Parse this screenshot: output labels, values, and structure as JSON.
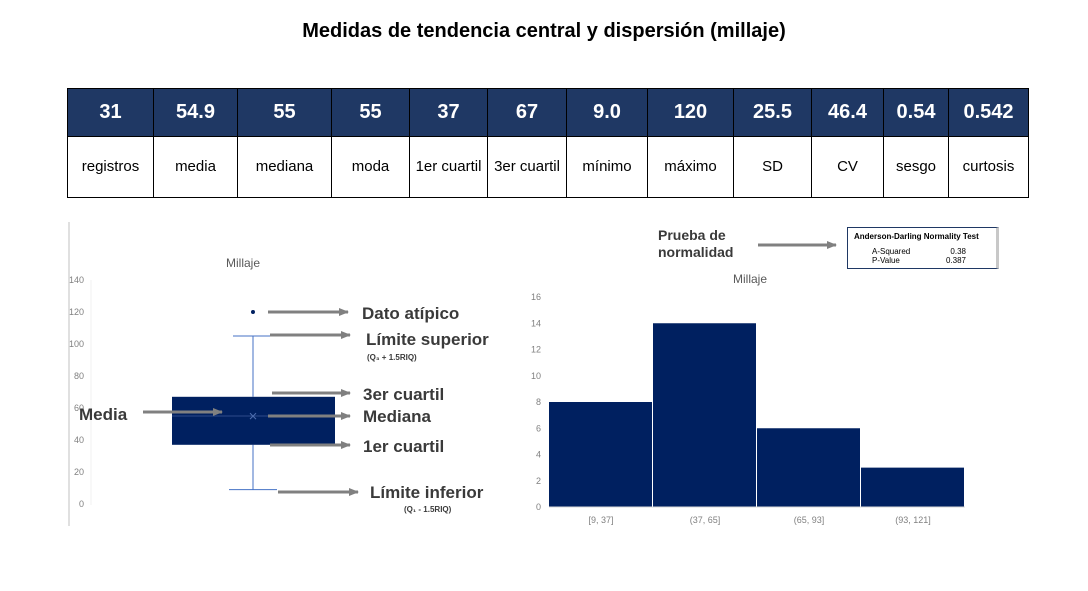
{
  "title": "Medidas de tendencia central y dispersión (millaje)",
  "stats": [
    {
      "value": "31",
      "label": "registros"
    },
    {
      "value": "54.9",
      "label": "media"
    },
    {
      "value": "55",
      "label": "mediana"
    },
    {
      "value": "55",
      "label": "moda"
    },
    {
      "value": "37",
      "label": "1er cuartil"
    },
    {
      "value": "67",
      "label": "3er cuartil"
    },
    {
      "value": "9.0",
      "label": "mínimo"
    },
    {
      "value": "120",
      "label": "máximo"
    },
    {
      "value": "25.5",
      "label": "SD"
    },
    {
      "value": "46.4",
      "label": "CV"
    },
    {
      "value": "0.54",
      "label": "sesgo"
    },
    {
      "value": "0.542",
      "label": "curtosis"
    }
  ],
  "annotations": {
    "outlier": "Dato atípico",
    "upper": "Límite superior",
    "upper_formula": "(Q₃ + 1.5RIQ)",
    "q3": "3er cuartil",
    "median": "Mediana",
    "q1": "1er cuartil",
    "lower": "Límite inferior",
    "lower_formula": "(Q₁ - 1.5RIQ)",
    "mean": "Media",
    "normality_line1": "Prueba de",
    "normality_line2": "normalidad"
  },
  "normality_test": {
    "title": "Anderson-Darling Normality Test",
    "a_squared_label": "A-Squared",
    "a_squared": "0.38",
    "p_value_label": "P-Value",
    "p_value": "0.387"
  },
  "colors": {
    "header": "#1f3864",
    "box": "#002060",
    "bar": "#002060",
    "whisker": "#4472c4",
    "arrow": "#808080",
    "axis_text": "#595959"
  },
  "chart_data": [
    {
      "type": "box",
      "title": "Millaje",
      "ylim": [
        0,
        140
      ],
      "yticks": [
        0,
        20,
        40,
        60,
        80,
        100,
        120,
        140
      ],
      "min": 9,
      "q1": 37,
      "median": 55,
      "mean": 54.9,
      "q3": 67,
      "upper_whisker": 105,
      "outliers": [
        120
      ]
    },
    {
      "type": "bar",
      "title": "Millaje",
      "categories": [
        "[9, 37]",
        "(37, 65]",
        "(65, 93]",
        "(93, 121]"
      ],
      "values": [
        8,
        14,
        6,
        3
      ],
      "ylim": [
        0,
        16
      ],
      "yticks": [
        0,
        2,
        4,
        6,
        8,
        10,
        12,
        14,
        16
      ]
    }
  ]
}
